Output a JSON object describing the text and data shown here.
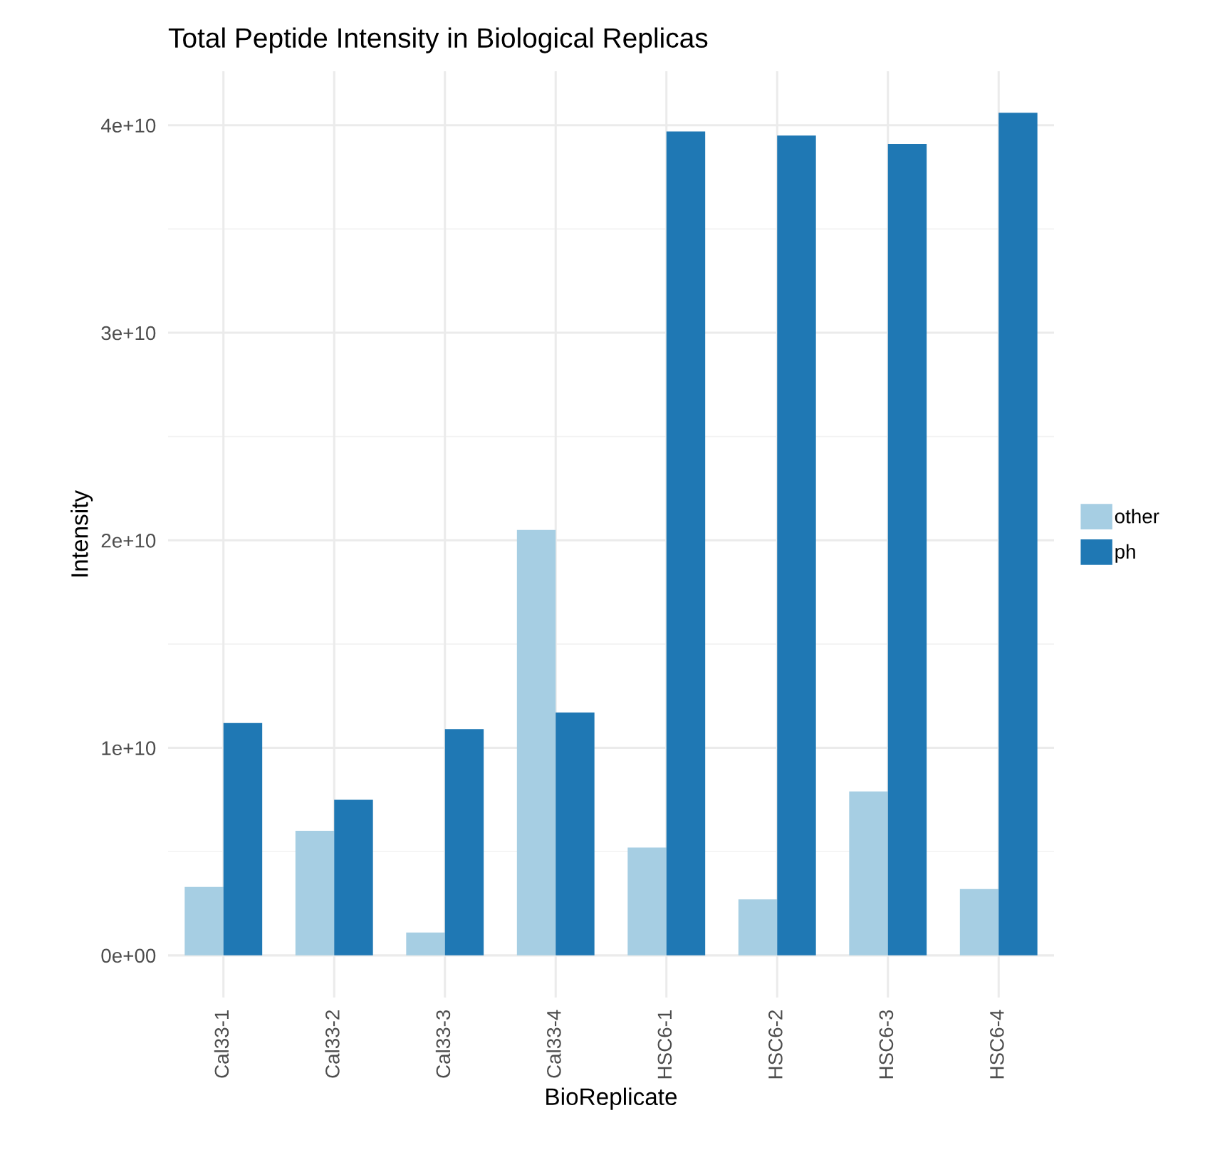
{
  "chart_data": {
    "type": "bar",
    "title": "Total Peptide Intensity in Biological Replicas",
    "xlabel": "BioReplicate",
    "ylabel": "Intensity",
    "categories": [
      "Cal33-1",
      "Cal33-2",
      "Cal33-3",
      "Cal33-4",
      "HSC6-1",
      "HSC6-2",
      "HSC6-3",
      "HSC6-4"
    ],
    "series": [
      {
        "name": "other",
        "color": "#a6cee3",
        "values": [
          3300000000.0,
          6000000000.0,
          1100000000.0,
          20500000000.0,
          5200000000.0,
          2700000000.0,
          7900000000.0,
          3200000000.0
        ]
      },
      {
        "name": "ph",
        "color": "#1f78b4",
        "values": [
          11200000000.0,
          7500000000.0,
          10900000000.0,
          11700000000.0,
          39700000000.0,
          39500000000.0,
          39100000000.0,
          40600000000.0
        ]
      }
    ],
    "ylim": [
      -2030000000.0,
      42600000000.0
    ],
    "yticks": [
      {
        "value": 0,
        "label": "0e+00"
      },
      {
        "value": 10000000000.0,
        "label": "1e+10"
      },
      {
        "value": 20000000000.0,
        "label": "2e+10"
      },
      {
        "value": 30000000000.0,
        "label": "3e+10"
      },
      {
        "value": 40000000000.0,
        "label": "4e+10"
      }
    ],
    "grid": true,
    "legend": "right"
  }
}
